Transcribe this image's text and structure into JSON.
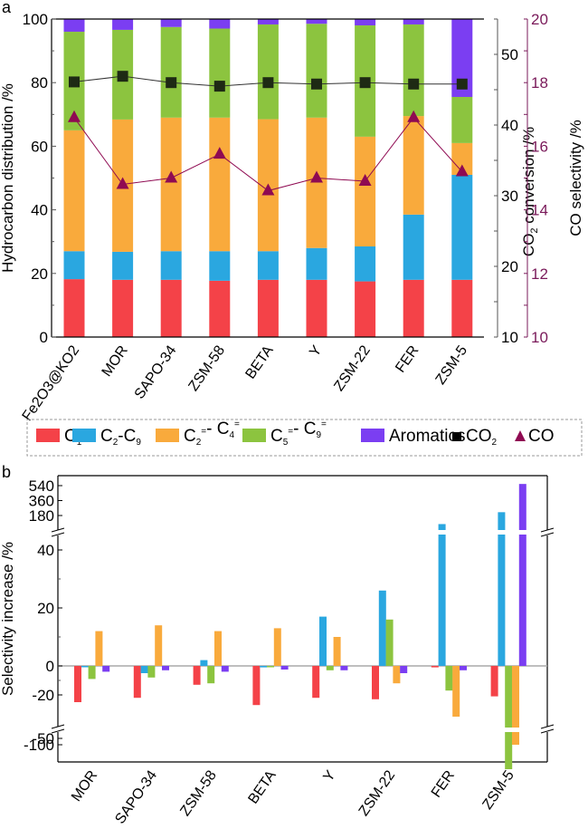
{
  "colors": {
    "C1": "#f44248",
    "C2C9": "#2aa7e0",
    "C2C4_olefin": "#f9aa3c",
    "C5C9_olefin": "#8cc43f",
    "Aromatics": "#7b3ef2",
    "CO2": "#1e2a14",
    "CO": "#8f0a52",
    "co_axis": "#7a1a5a"
  },
  "legend": {
    "items": [
      {
        "key": "C1",
        "main": "C",
        "sub": "1",
        "sup": "",
        "tail": ""
      },
      {
        "key": "C2C9",
        "main": "C",
        "sub": "2",
        "sup": "",
        "tail": "-C",
        "tail_sub": "9"
      },
      {
        "key": "C2C4_olefin",
        "main": "C",
        "sub": "2",
        "sup": "=",
        "tail": "- C",
        "tail_sub": "4",
        "tail_sup": "="
      },
      {
        "key": "C5C9_olefin",
        "main": "C",
        "sub": "5",
        "sup": "=",
        "tail": "- C",
        "tail_sub": "9",
        "tail_sup": "="
      },
      {
        "key": "Aromatics",
        "main": "Aromatics"
      },
      {
        "key": "CO2",
        "main": "CO",
        "sub": "2"
      },
      {
        "key": "CO",
        "main": "CO"
      }
    ]
  },
  "chart_data": [
    {
      "panel_label": "a",
      "type": "bar",
      "stacked": true,
      "categories": [
        "Fe2O3@KO2",
        "MOR",
        "SAPO-34",
        "ZSM-58",
        "BETA",
        "Y",
        "ZSM-22",
        "FER",
        "ZSM-5"
      ],
      "ylabel": "Hydrocarbon distribution /%",
      "ylim": [
        0,
        100
      ],
      "yticks": [
        0,
        20,
        40,
        60,
        80,
        100
      ],
      "series": [
        {
          "name": "C1",
          "values": [
            18.2,
            18.0,
            18.0,
            17.7,
            18.0,
            18.0,
            17.5,
            18.0,
            18.0
          ]
        },
        {
          "name": "C2-C9",
          "values": [
            8.8,
            8.8,
            9.0,
            9.3,
            9.0,
            10.0,
            11.0,
            20.5,
            33.0
          ]
        },
        {
          "name": "C2=-C4=",
          "values": [
            38.0,
            41.6,
            42.0,
            42.0,
            41.5,
            41.0,
            34.5,
            31.0,
            10.0
          ]
        },
        {
          "name": "C5=-C9=",
          "values": [
            31.0,
            28.2,
            28.5,
            28.0,
            29.8,
            29.5,
            35.0,
            28.8,
            14.5
          ]
        },
        {
          "name": "Aromatics",
          "values": [
            4.0,
            3.4,
            2.5,
            3.0,
            1.7,
            1.5,
            2.0,
            1.7,
            24.5
          ]
        }
      ],
      "secondary_axes": [
        {
          "name": "CO2 conversion",
          "label_main": "CO",
          "label_sub": "2",
          "label_tail": " conversion /%",
          "ylim": [
            10,
            55
          ],
          "yticks": [
            10,
            20,
            30,
            40,
            50
          ],
          "type": "line",
          "marker": "square",
          "values": [
            46.1,
            46.9,
            46.0,
            45.5,
            46.0,
            45.8,
            46.0,
            45.8,
            45.8
          ]
        },
        {
          "name": "CO selectivity",
          "label": "CO selectivity /%",
          "ylim": [
            10,
            20
          ],
          "yticks": [
            10,
            12,
            14,
            16,
            18,
            20
          ],
          "type": "line",
          "marker": "triangle",
          "values": [
            16.9,
            14.8,
            15.0,
            15.75,
            14.6,
            15.0,
            14.9,
            16.9,
            15.2
          ]
        }
      ]
    },
    {
      "panel_label": "b",
      "type": "bar",
      "grouped": true,
      "categories": [
        "MOR",
        "SAPO-34",
        "ZSM-58",
        "BETA",
        "Y",
        "ZSM-22",
        "FER",
        "ZSM-5"
      ],
      "ylabel": "Selectivity increase /%",
      "ylim": [
        -120,
        600
      ],
      "axis_breaks": [
        [
          -50,
          -70
        ],
        [
          45,
          120
        ]
      ],
      "yticks": [
        "-100",
        "-50",
        "-20",
        "0",
        "20",
        "40",
        "180",
        "360",
        "540"
      ],
      "series": [
        {
          "name": "C1",
          "values": [
            -25,
            -22,
            -13,
            -27,
            -22,
            -23,
            -1,
            -21
          ]
        },
        {
          "name": "C2-C9",
          "values": [
            0,
            -5,
            2,
            -1,
            17,
            26,
            77,
            220
          ]
        },
        {
          "name": "C5=-C9=",
          "values": [
            -9,
            -8,
            -12,
            -0.5,
            -3,
            16,
            -17,
            -70
          ]
        },
        {
          "name": "C2=-C4=",
          "values": [
            12,
            14,
            12,
            13,
            10,
            -12,
            -35,
            -100
          ]
        },
        {
          "name": "Aromatics",
          "values": [
            -4,
            -3,
            -4,
            -2.5,
            -3,
            -5,
            -3,
            560
          ]
        }
      ]
    }
  ]
}
